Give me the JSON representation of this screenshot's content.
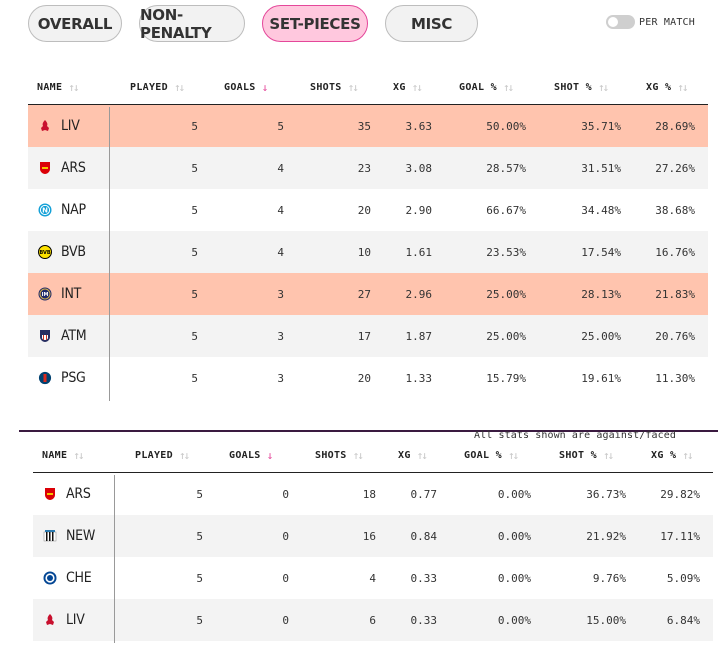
{
  "tabs": [
    "OVERALL",
    "NON-PENALTY",
    "SET-PIECES",
    "MISC"
  ],
  "active_tab": "SET-PIECES",
  "toggle": {
    "label": "PER MATCH",
    "on": false
  },
  "table_for": {
    "headers": {
      "name": "NAME",
      "played": "PLAYED",
      "goals": "GOALS",
      "shots": "SHOTS",
      "xg": "XG",
      "goal_pct": "GOAL %",
      "shot_pct": "SHOT %",
      "xg_pct": "XG %"
    },
    "sorted_by": "goals",
    "rows": [
      {
        "team": "LIV",
        "crest": "liverpool-crest-icon",
        "played": "5",
        "goals": "5",
        "shots": "35",
        "xg": "3.63",
        "goal_pct": "50.00%",
        "shot_pct": "35.71%",
        "xg_pct": "28.69%",
        "highlight": true
      },
      {
        "team": "ARS",
        "crest": "arsenal-crest-icon",
        "played": "5",
        "goals": "4",
        "shots": "23",
        "xg": "3.08",
        "goal_pct": "28.57%",
        "shot_pct": "31.51%",
        "xg_pct": "27.26%",
        "highlight": false
      },
      {
        "team": "NAP",
        "crest": "napoli-crest-icon",
        "played": "5",
        "goals": "4",
        "shots": "20",
        "xg": "2.90",
        "goal_pct": "66.67%",
        "shot_pct": "34.48%",
        "xg_pct": "38.68%",
        "highlight": false
      },
      {
        "team": "BVB",
        "crest": "dortmund-crest-icon",
        "played": "5",
        "goals": "4",
        "shots": "10",
        "xg": "1.61",
        "goal_pct": "23.53%",
        "shot_pct": "17.54%",
        "xg_pct": "16.76%",
        "highlight": false
      },
      {
        "team": "INT",
        "crest": "inter-crest-icon",
        "played": "5",
        "goals": "3",
        "shots": "27",
        "xg": "2.96",
        "goal_pct": "25.00%",
        "shot_pct": "28.13%",
        "xg_pct": "21.83%",
        "highlight": true
      },
      {
        "team": "ATM",
        "crest": "atletico-crest-icon",
        "played": "5",
        "goals": "3",
        "shots": "17",
        "xg": "1.87",
        "goal_pct": "25.00%",
        "shot_pct": "25.00%",
        "xg_pct": "20.76%",
        "highlight": false
      },
      {
        "team": "PSG",
        "crest": "psg-crest-icon",
        "played": "5",
        "goals": "3",
        "shots": "20",
        "xg": "1.33",
        "goal_pct": "15.79%",
        "shot_pct": "19.61%",
        "xg_pct": "11.30%",
        "highlight": false
      }
    ]
  },
  "against_note": "All stats shown are against/faced",
  "table_against": {
    "headers": {
      "name": "NAME",
      "played": "PLAYED",
      "goals": "GOALS",
      "shots": "SHOTS",
      "xg": "XG",
      "goal_pct": "GOAL %",
      "shot_pct": "SHOT %",
      "xg_pct": "XG %"
    },
    "sorted_by": "goals",
    "rows": [
      {
        "team": "ARS",
        "crest": "arsenal-crest-icon",
        "played": "5",
        "goals": "0",
        "shots": "18",
        "xg": "0.77",
        "goal_pct": "0.00%",
        "shot_pct": "36.73%",
        "xg_pct": "29.82%"
      },
      {
        "team": "NEW",
        "crest": "newcastle-crest-icon",
        "played": "5",
        "goals": "0",
        "shots": "16",
        "xg": "0.84",
        "goal_pct": "0.00%",
        "shot_pct": "21.92%",
        "xg_pct": "17.11%"
      },
      {
        "team": "CHE",
        "crest": "chelsea-crest-icon",
        "played": "5",
        "goals": "0",
        "shots": "4",
        "xg": "0.33",
        "goal_pct": "0.00%",
        "shot_pct": "9.76%",
        "xg_pct": "5.09%"
      },
      {
        "team": "LIV",
        "crest": "liverpool-crest-icon",
        "played": "5",
        "goals": "0",
        "shots": "6",
        "xg": "0.33",
        "goal_pct": "0.00%",
        "shot_pct": "15.00%",
        "xg_pct": "6.84%"
      }
    ]
  },
  "colors": {
    "accent": "#e4479a",
    "active_tab_bg": "#ffc8de",
    "highlight_row": "#ffc4ae",
    "alt_row": "#f3f3f3"
  }
}
